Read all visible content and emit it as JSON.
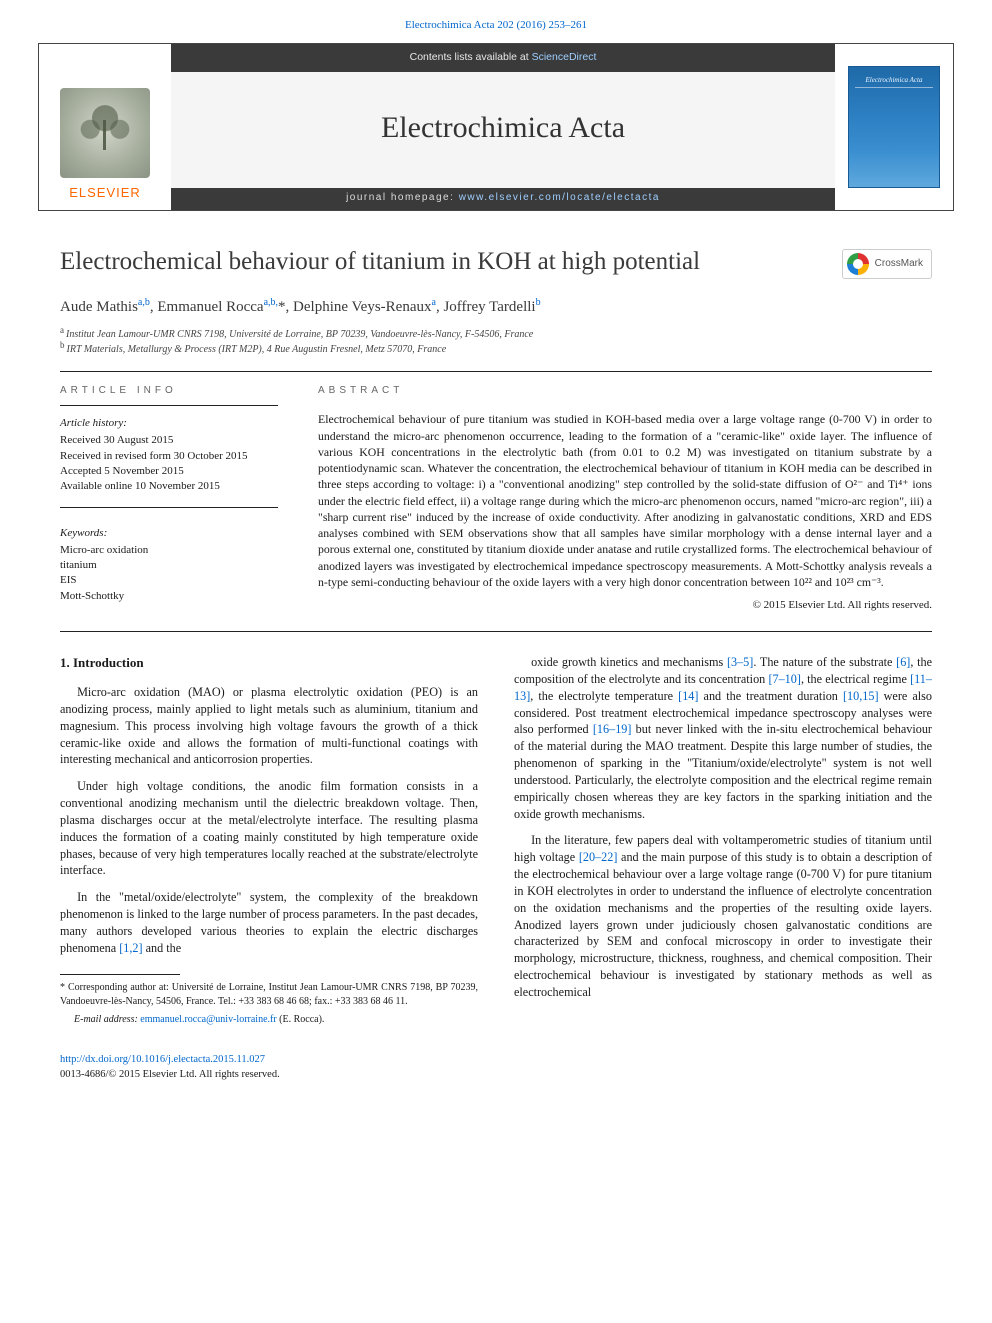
{
  "journal": {
    "citation": "Electrochimica Acta 202 (2016) 253–261",
    "contents_prefix": "Contents lists available at ",
    "contents_link": "ScienceDirect",
    "name": "Electrochimica Acta",
    "homepage_prefix": "journal homepage: ",
    "homepage_url": "www.elsevier.com/locate/electacta",
    "publisher": "ELSEVIER",
    "cover_title": "Electrochimica Acta"
  },
  "crossmark": {
    "label": "CrossMark"
  },
  "article": {
    "title": "Electrochemical behaviour of titanium in KOH at high potential",
    "authors_html": "Aude Mathis<sup class='link'>a,b</sup>, Emmanuel Rocca<sup class='link'>a,b,</sup>*, Delphine Veys-Renaux<sup class='link'>a</sup>, Joffrey Tardelli<sup class='link'>b</sup>",
    "affiliations": [
      {
        "key": "a",
        "text": "Institut Jean Lamour-UMR CNRS 7198, Université de Lorraine, BP 70239, Vandoeuvre-lès-Nancy, F-54506, France"
      },
      {
        "key": "b",
        "text": "IRT Materials, Metallurgy & Process (IRT M2P), 4 Rue Augustin Fresnel, Metz 57070, France"
      }
    ]
  },
  "info": {
    "header": "ARTICLE INFO",
    "history_label": "Article history:",
    "history": [
      "Received 30 August 2015",
      "Received in revised form 30 October 2015",
      "Accepted 5 November 2015",
      "Available online 10 November 2015"
    ],
    "keywords_label": "Keywords:",
    "keywords": [
      "Micro-arc oxidation",
      "titanium",
      "EIS",
      "Mott-Schottky"
    ]
  },
  "abstract": {
    "header": "ABSTRACT",
    "text": "Electrochemical behaviour of pure titanium was studied in KOH-based media over a large voltage range (0-700 V) in order to understand the micro-arc phenomenon occurrence, leading to the formation of a \"ceramic-like\" oxide layer. The influence of various KOH concentrations in the electrolytic bath (from 0.01 to 0.2 M) was investigated on titanium substrate by a potentiodynamic scan. Whatever the concentration, the electrochemical behaviour of titanium in KOH media can be described in three steps according to voltage: i) a \"conventional anodizing\" step controlled by the solid-state diffusion of O²⁻ and Ti⁴⁺ ions under the electric field effect, ii) a voltage range during which the micro-arc phenomenon occurs, named \"micro-arc region\", iii) a \"sharp current rise\" induced by the increase of oxide conductivity. After anodizing in galvanostatic conditions, XRD and EDS analyses combined with SEM observations show that all samples have similar morphology with a dense internal layer and a porous external one, constituted by titanium dioxide under anatase and rutile crystallized forms. The electrochemical behaviour of anodized layers was investigated by electrochemical impedance spectroscopy measurements. A Mott-Schottky analysis reveals a n-type semi-conducting behaviour of the oxide layers with a very high donor concentration between 10²² and 10²³ cm⁻³.",
    "copyright": "© 2015 Elsevier Ltd. All rights reserved."
  },
  "body": {
    "heading": "1. Introduction",
    "paragraphs": [
      "Micro-arc oxidation (MAO) or plasma electrolytic oxidation (PEO) is an anodizing process, mainly applied to light metals such as aluminium, titanium and magnesium. This process involving high voltage favours the growth of a thick ceramic-like oxide and allows the formation of multi-functional coatings with interesting mechanical and anticorrosion properties.",
      "Under high voltage conditions, the anodic film formation consists in a conventional anodizing mechanism until the dielectric breakdown voltage. Then, plasma discharges occur at the metal/electrolyte interface. The resulting plasma induces the formation of a coating mainly constituted by high temperature oxide phases, because of very high temperatures locally reached at the substrate/electrolyte interface.",
      "In the \"metal/oxide/electrolyte\" system, the complexity of the breakdown phenomenon is linked to the large number of process parameters. In the past decades, many authors developed various theories to explain the electric discharges phenomena <span class='link'>[1,2]</span> and the",
      "oxide growth kinetics and mechanisms <span class='link'>[3–5]</span>. The nature of the substrate <span class='link'>[6]</span>, the composition of the electrolyte and its concentration <span class='link'>[7–10]</span>, the electrical regime <span class='link'>[11–13]</span>, the electrolyte temperature <span class='link'>[14]</span> and the treatment duration <span class='link'>[10,15]</span> were also considered. Post treatment electrochemical impedance spectroscopy analyses were also performed <span class='link'>[16–19]</span> but never linked with the in-situ electrochemical behaviour of the material during the MAO treatment. Despite this large number of studies, the phenomenon of sparking in the \"Titanium/oxide/electrolyte\" system is not well understood. Particularly, the electrolyte composition and the electrical regime remain empirically chosen whereas they are key factors in the sparking initiation and the oxide growth mechanisms.",
      "In the literature, few papers deal with voltamperometric studies of titanium until high voltage <span class='link'>[20–22]</span> and the main purpose of this study is to obtain a description of the electrochemical behaviour over a large voltage range (0-700 V) for pure titanium in KOH electrolytes in order to understand the influence of electrolyte concentration on the oxidation mechanisms and the properties of the resulting oxide layers. Anodized layers grown under judiciously chosen galvanostatic conditions are characterized by SEM and confocal microscopy in order to investigate their morphology, microstructure, thickness, roughness, and chemical composition. Their electrochemical behaviour is investigated by stationary methods as well as electrochemical"
    ]
  },
  "footnotes": {
    "corr": "* Corresponding author at: Université de Lorraine, Institut Jean Lamour-UMR CNRS 7198, BP 70239, Vandoeuvre-lès-Nancy, 54506, France. Tel.: +33 383 68 46 68; fax.: +33 383 68 46 11.",
    "email_label": "E-mail address: ",
    "email": "emmanuel.rocca@univ-lorraine.fr",
    "email_who": " (E. Rocca)."
  },
  "bottom": {
    "doi": "http://dx.doi.org/10.1016/j.electacta.2015.11.027",
    "issn": "0013-4686/© 2015 Elsevier Ltd. All rights reserved."
  },
  "colors": {
    "link": "#0066cc",
    "elsevier_orange": "#ff6600",
    "banner_dark": "#3a3a3a",
    "text": "#1a1a1a",
    "cover_blue": "#2a7cbf"
  }
}
